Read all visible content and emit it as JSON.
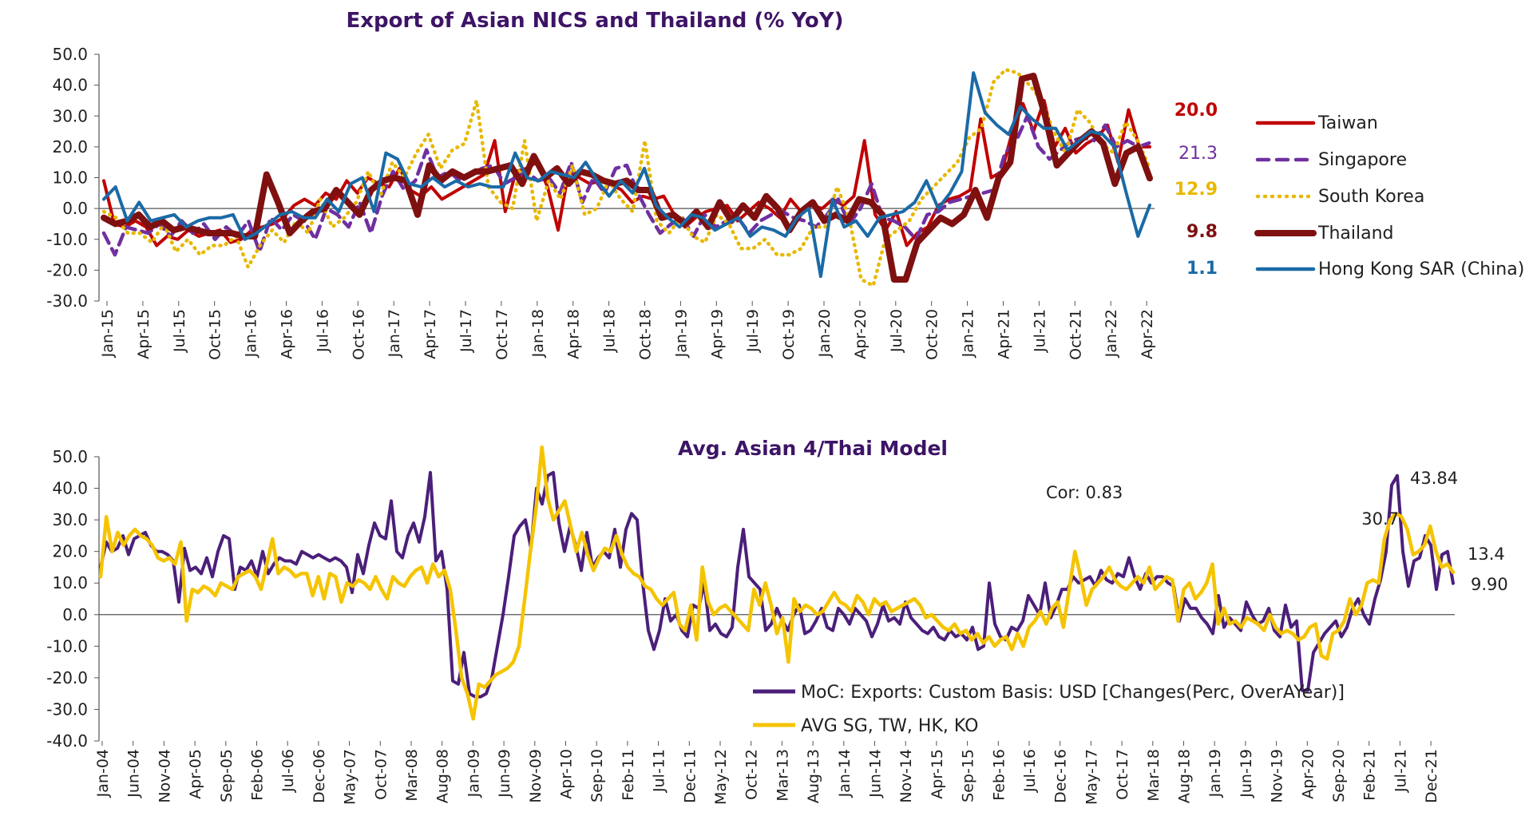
{
  "chart_data": [
    {
      "type": "line",
      "title": "Export of Asian NICS and Thailand (% YoY)",
      "xlabel": "",
      "ylabel": "",
      "x_tick_labels": [
        "Jan-15",
        "Apr-15",
        "Jul-15",
        "Oct-15",
        "Jan-16",
        "Apr-16",
        "Jul-16",
        "Oct-16",
        "Jan-17",
        "Apr-17",
        "Jul-17",
        "Oct-17",
        "Jan-18",
        "Apr-18",
        "Jul-18",
        "Oct-18",
        "Jan-19",
        "Apr-19",
        "Jul-19",
        "Oct-19",
        "Jan-20",
        "Apr-20",
        "Jul-20",
        "Oct-20",
        "Jan-21",
        "Apr-21",
        "Jul-21",
        "Oct-21",
        "Jan-22",
        "Apr-22"
      ],
      "y_tick_labels": [
        "50.0",
        "40.0",
        "30.0",
        "20.0",
        "10.0",
        "0.0",
        "-10.0",
        "-20.0",
        "-30.0"
      ],
      "ylim": [
        -30,
        50
      ],
      "grid": false,
      "legend_position": "right",
      "latest_values": [
        {
          "series": "Taiwan",
          "label": "20.0",
          "color": "#c00000"
        },
        {
          "series": "Singapore",
          "label": "21.3",
          "color": "#7030a0"
        },
        {
          "series": "South Korea",
          "label": "12.9",
          "color": "#e8b800"
        },
        {
          "series": "Thailand",
          "label": "9.8",
          "color": "#7f1010"
        },
        {
          "series": "Hong Kong SAR (China)",
          "label": "1.1",
          "color": "#1a6aa6"
        }
      ],
      "series": [
        {
          "name": "Taiwan",
          "color": "#c00000",
          "style": "solid",
          "values": [
            9,
            -5,
            -6,
            -4,
            -6,
            -12,
            -9,
            -10,
            -7,
            -9,
            -8,
            -7,
            -11,
            -10,
            -7,
            -6,
            -5,
            -3,
            1,
            3,
            1,
            5,
            3,
            9,
            5,
            10,
            8,
            7,
            13,
            6,
            4,
            7,
            3,
            5,
            7,
            9,
            11,
            22,
            -1,
            12,
            13,
            15,
            7,
            -7,
            12,
            10,
            8,
            9,
            8,
            6,
            2,
            4,
            3,
            4,
            -2,
            -6,
            -3,
            -1,
            0,
            1,
            -4,
            -1,
            2,
            0,
            -3,
            3,
            -1,
            1,
            0,
            3,
            1,
            4,
            22,
            -2,
            -7,
            -1,
            -12,
            -8,
            -6,
            1,
            3,
            4,
            6,
            29,
            10,
            12,
            25,
            34,
            25,
            35,
            20,
            26,
            18,
            21,
            23,
            27,
            15,
            32,
            20,
            20
          ]
        },
        {
          "name": "Singapore",
          "color": "#7030a0",
          "style": "dashed",
          "values": [
            -8,
            -15,
            -6,
            -7,
            -8,
            -5,
            -9,
            -4,
            -8,
            -5,
            -10,
            -6,
            -9,
            -4,
            -14,
            -3,
            -7,
            -2,
            -4,
            -10,
            0,
            -2,
            -6,
            2,
            -8,
            4,
            12,
            6,
            9,
            19,
            10,
            12,
            9,
            11,
            13,
            14,
            8,
            10,
            12,
            9,
            10,
            5,
            15,
            2,
            10,
            5,
            13,
            14,
            5,
            -2,
            -8,
            -5,
            -3,
            -9,
            -2,
            -6,
            -4,
            -3,
            -8,
            -4,
            -2,
            -1,
            -3,
            -4,
            -6,
            -2,
            3,
            -5,
            0,
            8,
            -3,
            -4,
            -6,
            -10,
            -2,
            -1,
            2,
            3,
            4,
            5,
            6,
            18,
            22,
            30,
            20,
            16,
            19,
            22,
            23,
            22,
            27,
            20,
            22,
            20,
            21.3
          ]
        },
        {
          "name": "South Korea",
          "color": "#e8b800",
          "style": "dotted",
          "values": [
            -1,
            -3,
            -8,
            -8,
            -11,
            -5,
            -14,
            -10,
            -15,
            -12,
            -12,
            -9,
            -19,
            -12,
            -7,
            -11,
            -4,
            -8,
            3,
            -6,
            -3,
            2,
            12,
            4,
            15,
            10,
            18,
            24,
            13,
            19,
            21,
            35,
            7,
            2,
            0,
            22,
            -4,
            9,
            3,
            14,
            -2,
            0,
            9,
            3,
            -1,
            22,
            -4,
            -8,
            -3,
            -9,
            -11,
            -2,
            -5,
            -13,
            -13,
            -10,
            -15,
            -15,
            -13,
            -6,
            -6,
            7,
            -3,
            -23,
            -25,
            -10,
            -7,
            -4,
            3,
            7,
            11,
            15,
            23,
            26,
            41,
            45,
            44,
            40,
            35,
            25,
            18,
            32,
            28,
            21,
            18,
            28,
            22,
            13
          ]
        },
        {
          "name": "Thailand",
          "color": "#7f1010",
          "style": "solid",
          "values": [
            -3,
            -5,
            -4,
            -2,
            -6,
            -4,
            -7,
            -6,
            -7,
            -8,
            -8,
            -8,
            -9,
            -9,
            11,
            2,
            -8,
            -4,
            -1,
            0,
            6,
            2,
            -2,
            6,
            9,
            10,
            9,
            -2,
            14,
            9,
            12,
            10,
            12,
            12,
            13,
            14,
            8,
            17,
            10,
            13,
            8,
            12,
            11,
            9,
            8,
            9,
            6,
            6,
            -3,
            -2,
            -5,
            -1,
            -6,
            2,
            -4,
            1,
            -3,
            4,
            0,
            -7,
            -1,
            2,
            -4,
            -2,
            -4,
            3,
            2,
            -2,
            -23,
            -23,
            -11,
            -7,
            -3,
            -5,
            -2,
            6,
            -3,
            10,
            15,
            42,
            43,
            30,
            14,
            18,
            22,
            25,
            21,
            8,
            18,
            20,
            9.8
          ]
        },
        {
          "name": "Hong Kong SAR (China)",
          "color": "#1a6aa6",
          "style": "solid",
          "values": [
            3,
            7,
            -4,
            2,
            -4,
            -3,
            -2,
            -6,
            -4,
            -3,
            -3,
            -2,
            -10,
            -8,
            -5,
            -2,
            -1,
            -3,
            -3,
            3,
            -1,
            8,
            10,
            -1,
            18,
            16,
            8,
            7,
            10,
            7,
            9,
            7,
            8,
            7,
            7,
            18,
            10,
            9,
            12,
            11,
            10,
            15,
            9,
            4,
            9,
            5,
            13,
            1,
            -3,
            -6,
            -2,
            -3,
            -7,
            -5,
            -3,
            -9,
            -6,
            -7,
            -9,
            -3,
            0,
            -22,
            3,
            -6,
            -4,
            -9,
            -3,
            -2,
            -1,
            2,
            9,
            0,
            5,
            12,
            44,
            31,
            27,
            24,
            33,
            29,
            26,
            26,
            19,
            22,
            25,
            24,
            20,
            5,
            -9,
            1.1
          ]
        }
      ]
    },
    {
      "type": "line",
      "title": "Avg. Asian 4/Thai Model",
      "xlabel": "",
      "ylabel": "",
      "x_tick_labels": [
        "Jan-04",
        "Jun-04",
        "Nov-04",
        "Apr-05",
        "Sep-05",
        "Feb-06",
        "Jul-06",
        "Dec-06",
        "May-07",
        "Oct-07",
        "Mar-08",
        "Aug-08",
        "Jan-09",
        "Jun-09",
        "Nov-09",
        "Apr-10",
        "Sep-10",
        "Feb-11",
        "Jul-11",
        "Dec-11",
        "May-12",
        "Oct-12",
        "Mar-13",
        "Aug-13",
        "Jan-14",
        "Jun-14",
        "Nov-14",
        "Apr-15",
        "Sep-15",
        "Feb-16",
        "Jul-16",
        "Dec-16",
        "May-17",
        "Oct-17",
        "Mar-18",
        "Aug-18",
        "Jan-19",
        "Jun-19",
        "Nov-19",
        "Apr-20",
        "Sep-20",
        "Feb-21",
        "Jul-21",
        "Dec-21"
      ],
      "y_tick_labels": [
        "50.0",
        "40.0",
        "30.0",
        "20.0",
        "10.0",
        "0.0",
        "-10.0",
        "-20.0",
        "-30.0",
        "-40.0"
      ],
      "ylim": [
        -40,
        50
      ],
      "grid": false,
      "legend_position": "bottom-right",
      "annotation_cor": "Cor: 0.83",
      "end_labels": [
        "43.84",
        "30.7",
        "13.4",
        "9.90"
      ],
      "series": [
        {
          "name": "MoC: Exports: Custom Basis: USD [Changes(Perc, OverAYear)]",
          "color": "#4b1f7a",
          "values": [
            15,
            23,
            20,
            21,
            25,
            19,
            24,
            25,
            26,
            22,
            20,
            20,
            19,
            17,
            4,
            21,
            14,
            15,
            13,
            18,
            12,
            20,
            25,
            24,
            8,
            15,
            14,
            17,
            12,
            20,
            13,
            16,
            18,
            17,
            17,
            16,
            20,
            19,
            18,
            19,
            18,
            17,
            18,
            17,
            15,
            7,
            19,
            13,
            22,
            29,
            25,
            24,
            36,
            20,
            18,
            25,
            29,
            23,
            31,
            45,
            17,
            20,
            8,
            -21,
            -22,
            -12,
            -25,
            -26,
            -26,
            -25,
            -20,
            -10,
            0,
            12,
            25,
            28,
            30,
            21,
            40,
            35,
            44,
            45,
            29,
            20,
            28,
            22,
            14,
            26,
            15,
            18,
            20,
            18,
            27,
            15,
            27,
            32,
            30,
            10,
            -5,
            -11,
            -5,
            5,
            -2,
            0,
            -5,
            -7,
            3,
            2,
            10,
            -5,
            -3,
            -6,
            -7,
            -4,
            15,
            27,
            12,
            10,
            8,
            -5,
            -3,
            2,
            -2,
            -5,
            0,
            3,
            -6,
            -5,
            -2,
            2,
            -4,
            -5,
            2,
            0,
            -3,
            2,
            0,
            -2,
            -7,
            -3,
            3,
            -2,
            -1,
            -3,
            4,
            -1,
            -3,
            -5,
            -6,
            -4,
            -7,
            -8,
            -5,
            -7,
            -6,
            -8,
            -4,
            -11,
            -10,
            10,
            -3,
            -7,
            -8,
            -4,
            -5,
            -2,
            6,
            3,
            0,
            10,
            -1,
            3,
            8,
            8,
            12,
            10,
            11,
            12,
            9,
            14,
            11,
            10,
            13,
            12,
            18,
            12,
            8,
            13,
            10,
            12,
            12,
            10,
            9,
            -2,
            5,
            2,
            2,
            -1,
            -3,
            -6,
            6,
            -4,
            -1,
            -3,
            -5,
            4,
            0,
            -3,
            -2,
            2,
            -5,
            -7,
            3,
            -4,
            -2,
            -24,
            -24,
            -12,
            -9,
            -6,
            -4,
            -2,
            -7,
            -4,
            2,
            5,
            0,
            -3,
            5,
            11,
            20,
            41,
            44,
            20,
            9,
            17,
            18,
            25,
            22,
            8,
            19,
            20,
            9.9
          ]
        },
        {
          "name": "AVG SG, TW, HK, KO",
          "color": "#f5c400",
          "values": [
            12,
            31,
            20,
            26,
            22,
            25,
            27,
            25,
            24,
            22,
            18,
            17,
            18,
            16,
            23,
            -2,
            8,
            7,
            9,
            8,
            6,
            10,
            9,
            8,
            12,
            13,
            14,
            12,
            8,
            16,
            24,
            13,
            15,
            14,
            12,
            13,
            13,
            6,
            12,
            5,
            13,
            12,
            4,
            10,
            9,
            11,
            10,
            8,
            12,
            8,
            5,
            12,
            10,
            9,
            12,
            14,
            15,
            10,
            16,
            12,
            14,
            8,
            -5,
            -20,
            -25,
            -33,
            -22,
            -23,
            -21,
            -19,
            -18,
            -17,
            -15,
            -10,
            5,
            20,
            34,
            53,
            37,
            30,
            33,
            36,
            28,
            20,
            26,
            19,
            14,
            18,
            21,
            20,
            25,
            19,
            15,
            13,
            12,
            9,
            8,
            5,
            3,
            5,
            7,
            -3,
            -5,
            3,
            -8,
            15,
            4,
            0,
            2,
            3,
            1,
            -1,
            -3,
            -5,
            8,
            3,
            10,
            3,
            -6,
            -1,
            -15,
            5,
            1,
            3,
            2,
            0,
            1,
            4,
            7,
            4,
            3,
            1,
            6,
            4,
            0,
            5,
            3,
            4,
            1,
            2,
            3,
            4,
            5,
            3,
            -1,
            0,
            -2,
            -4,
            -5,
            -3,
            -6,
            -5,
            -8,
            -6,
            -9,
            -7,
            -10,
            -8,
            -7,
            -11,
            -6,
            -10,
            -4,
            -2,
            1,
            -3,
            2,
            4,
            -4,
            8,
            20,
            12,
            3,
            8,
            10,
            12,
            15,
            11,
            9,
            8,
            10,
            12,
            10,
            15,
            8,
            10,
            12,
            11,
            -2,
            8,
            10,
            5,
            7,
            10,
            16,
            -3,
            2,
            -3,
            -2,
            -4,
            -1,
            -2,
            -3,
            -5,
            0,
            -4,
            -6,
            -5,
            -6,
            -8,
            -7,
            -4,
            -3,
            -13,
            -14,
            -6,
            -5,
            -2,
            5,
            0,
            3,
            10,
            11,
            10,
            24,
            30,
            32,
            31,
            27,
            19,
            20,
            22,
            28,
            20,
            15,
            16,
            13.4
          ]
        }
      ]
    }
  ]
}
